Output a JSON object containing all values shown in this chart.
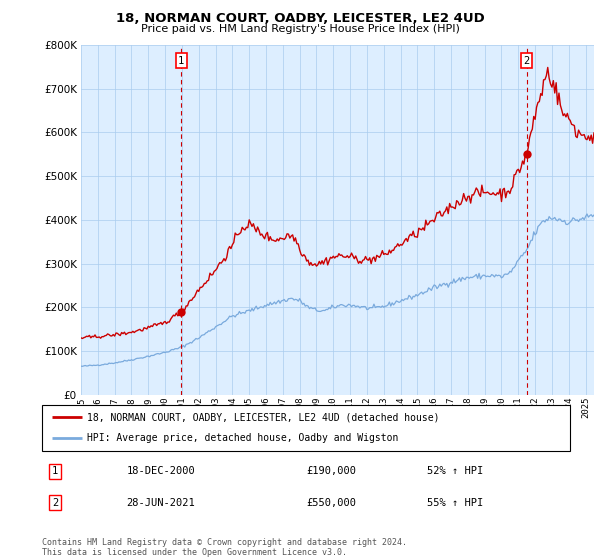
{
  "title": "18, NORMAN COURT, OADBY, LEICESTER, LE2 4UD",
  "subtitle": "Price paid vs. HM Land Registry's House Price Index (HPI)",
  "legend_line1": "18, NORMAN COURT, OADBY, LEICESTER, LE2 4UD (detached house)",
  "legend_line2": "HPI: Average price, detached house, Oadby and Wigston",
  "sale1_label": "1",
  "sale1_date": "18-DEC-2000",
  "sale1_price": "£190,000",
  "sale1_hpi": "52% ↑ HPI",
  "sale2_label": "2",
  "sale2_date": "28-JUN-2021",
  "sale2_price": "£550,000",
  "sale2_hpi": "55% ↑ HPI",
  "footnote": "Contains HM Land Registry data © Crown copyright and database right 2024.\nThis data is licensed under the Open Government Licence v3.0.",
  "hpi_color": "#7aaadd",
  "price_color": "#cc0000",
  "sale_dot_color": "#cc0000",
  "dashed_line_color": "#cc0000",
  "chart_bg_color": "#ddeeff",
  "background_color": "#ffffff",
  "grid_color": "#aaccee",
  "ylim": [
    0,
    800000
  ],
  "yticks": [
    0,
    100000,
    200000,
    300000,
    400000,
    500000,
    600000,
    700000,
    800000
  ],
  "xlim_start": 1995.0,
  "xlim_end": 2025.5,
  "sale1_x": 2000.96,
  "sale1_y": 190000,
  "sale2_x": 2021.49,
  "sale2_y": 550000
}
